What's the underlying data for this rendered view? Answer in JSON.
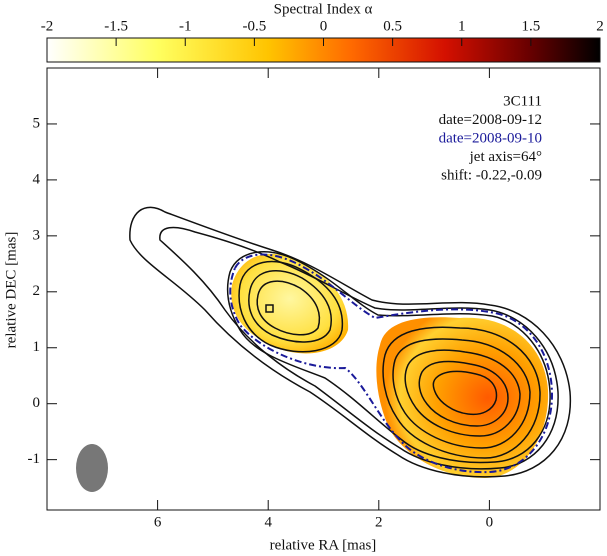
{
  "chart_data": {
    "type": "heatmap",
    "colorbar_title": "Spectral Index α",
    "colorbar_lim": [
      -2,
      2
    ],
    "colorbar_ticks": [
      -2,
      -1.5,
      -1,
      -0.5,
      0,
      0.5,
      1,
      1.5,
      2
    ],
    "xlabel": "relative RA [mas]",
    "ylabel": "relative DEC [mas]",
    "xlim": [
      8,
      -2
    ],
    "xticks": [
      6,
      4,
      2,
      0
    ],
    "ylim": [
      -1.9,
      6
    ],
    "yticks": [
      -1,
      0,
      1,
      2,
      3,
      4,
      5
    ],
    "annotations": [
      {
        "text": "3C111",
        "color": "#111111"
      },
      {
        "text": "date=2008-09-12",
        "color": "#111111"
      },
      {
        "text": "date=2008-09-10",
        "color": "#1a1a9a"
      },
      {
        "text": "jet axis=64°",
        "color": "#111111"
      },
      {
        "text": "shift: -0.22,-0.09",
        "color": "#111111"
      }
    ]
  }
}
